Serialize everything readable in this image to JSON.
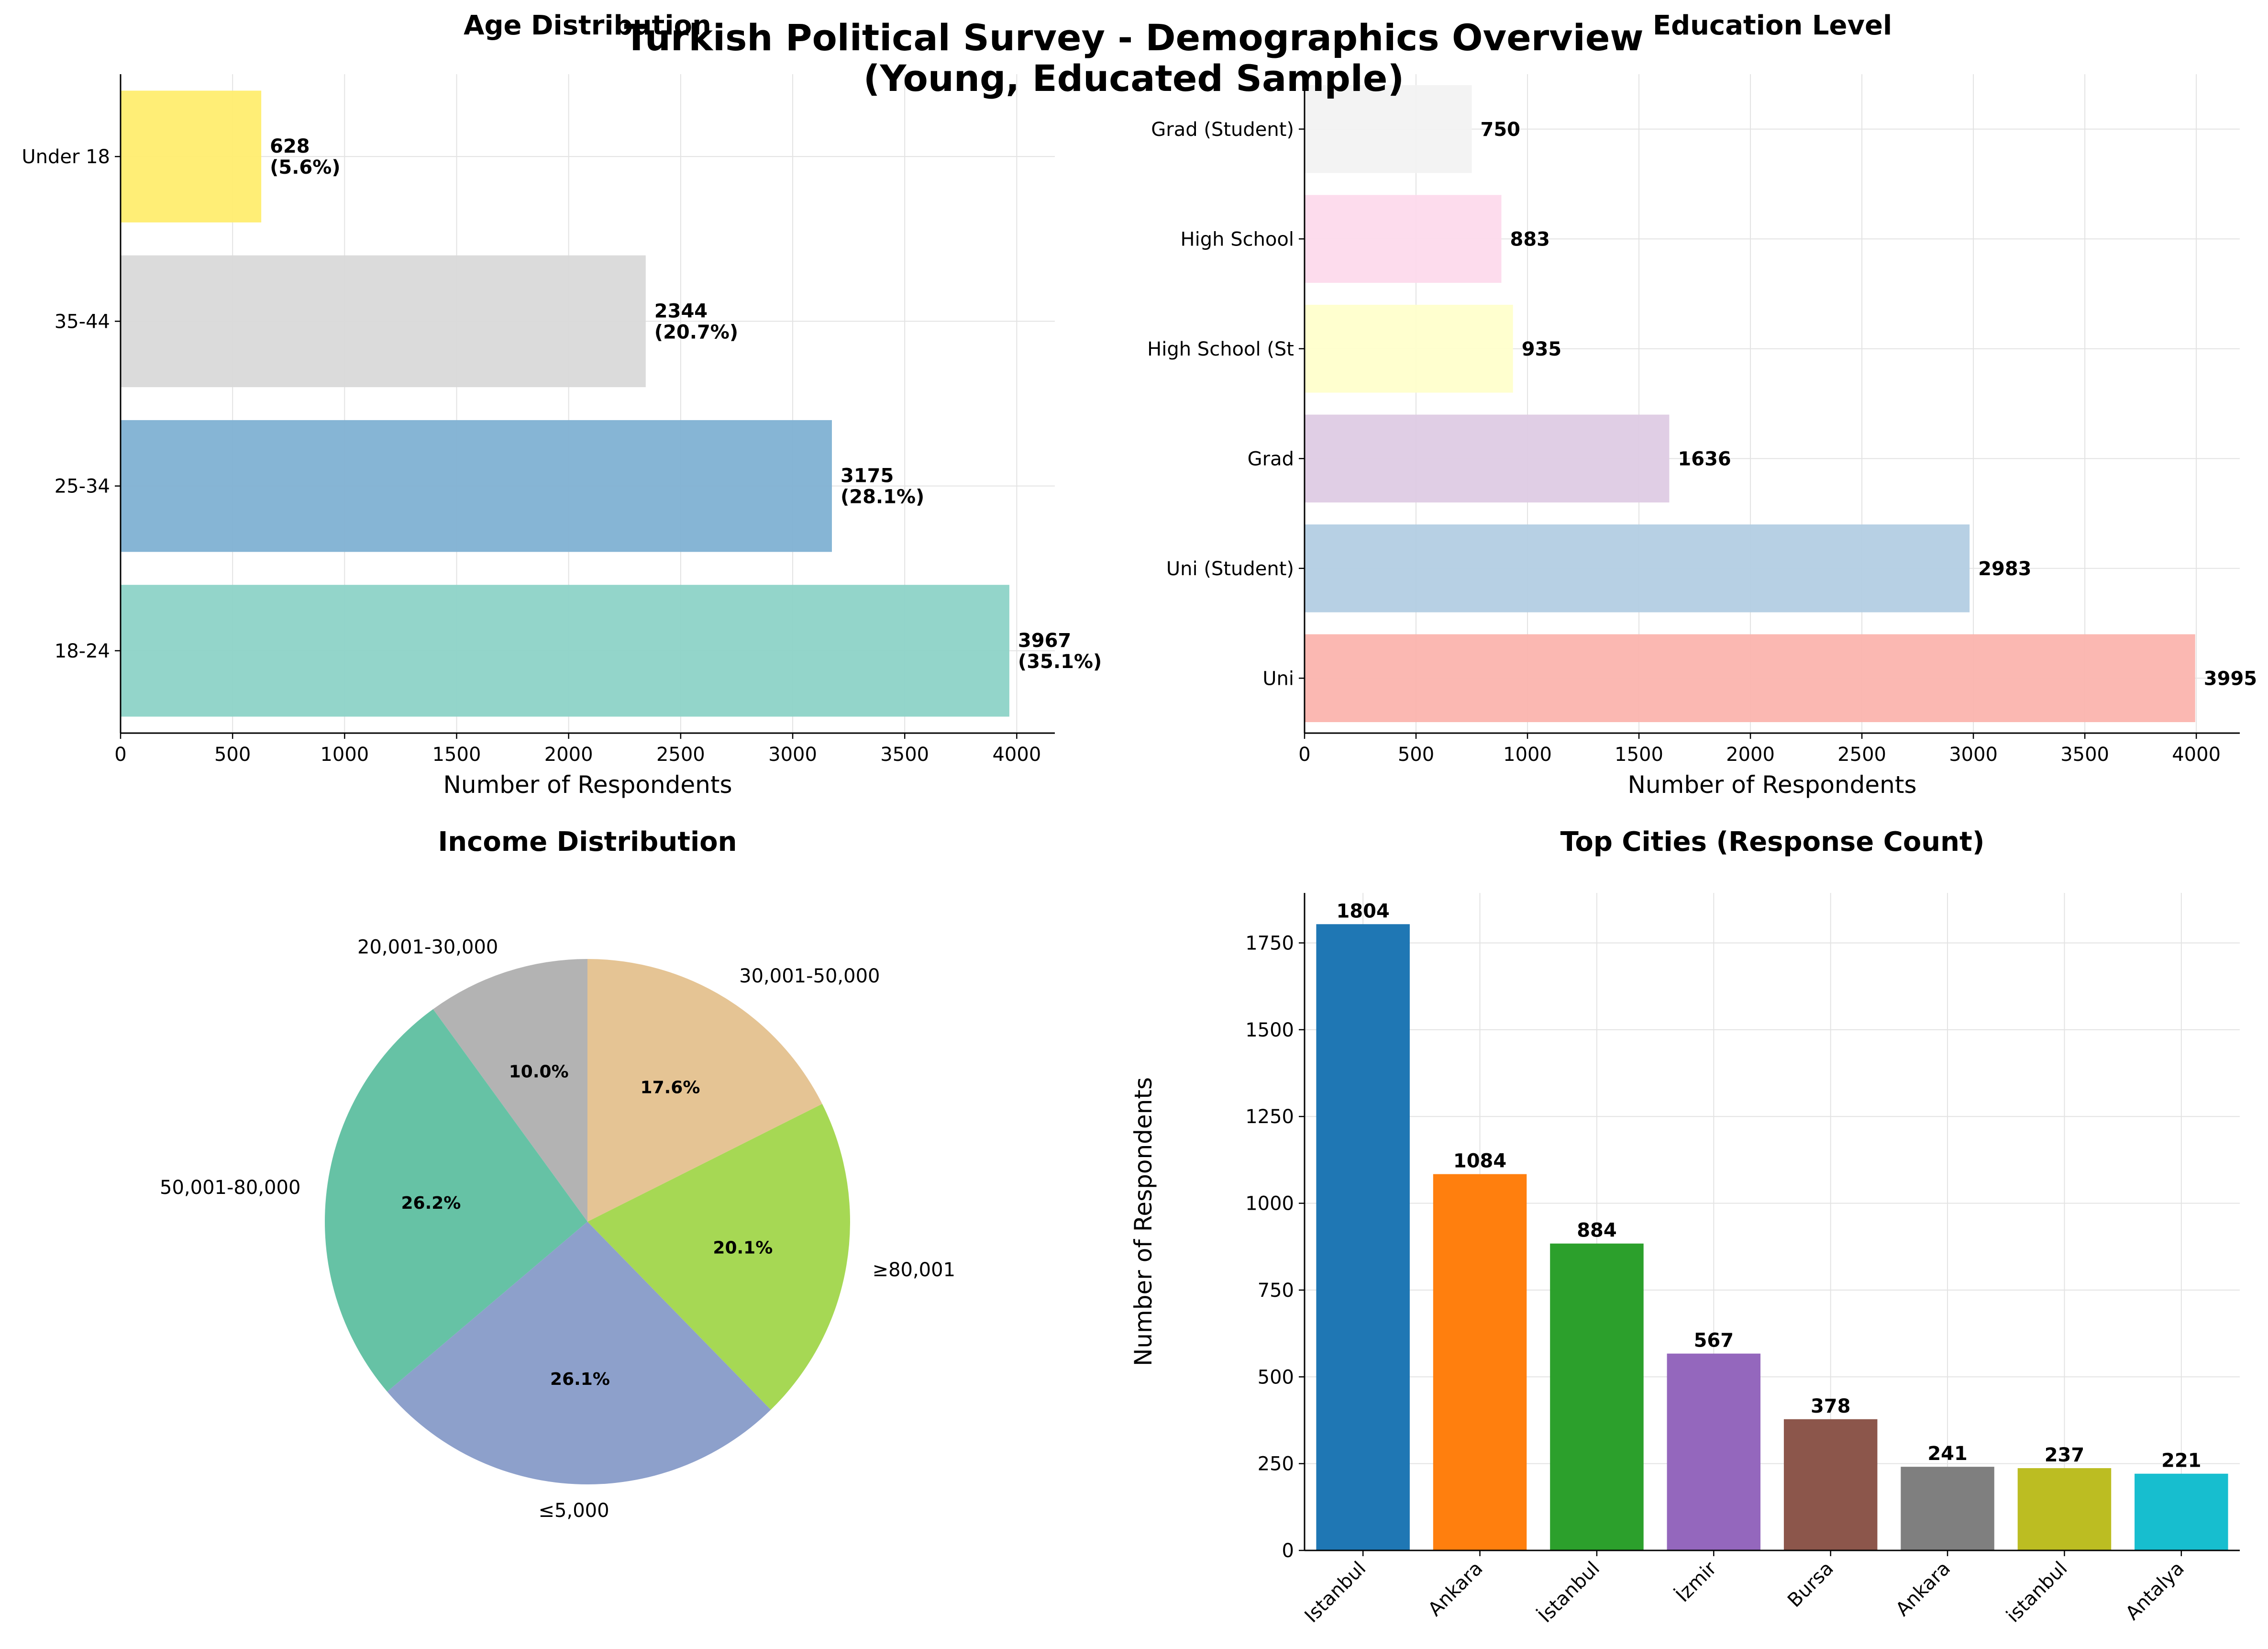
{
  "figure": {
    "title_line1": "Turkish Political Survey - Demographics Overview",
    "title_line2": "(Young, Educated Sample)"
  },
  "chart_data": [
    {
      "id": "age",
      "type": "bar",
      "orientation": "horizontal",
      "title": "Age Distribution",
      "xlabel": "Number of Respondents",
      "ylabel": "",
      "categories": [
        "18-24",
        "25-34",
        "35-44",
        "Under 18"
      ],
      "values": [
        3967,
        3175,
        2344,
        628
      ],
      "data_labels": [
        "3967\n(35.1%)",
        "3175\n(28.1%)",
        "2344\n(20.7%)",
        "628\n(5.6%)"
      ],
      "colors": [
        "#8dd3c7",
        "#80b1d3",
        "#d9d9d9",
        "#ffed6f"
      ],
      "xlim": [
        0,
        4170
      ],
      "xticks": [
        0,
        500,
        1000,
        1500,
        2000,
        2500,
        3000,
        3500,
        4000
      ],
      "grid": true
    },
    {
      "id": "edu",
      "type": "bar",
      "orientation": "horizontal",
      "title": "Education Level",
      "xlabel": "Number of Respondents",
      "ylabel": "",
      "categories": [
        "Uni",
        "Uni (Student)",
        "Grad",
        "High School (St",
        "High School",
        "Grad (Student)"
      ],
      "values": [
        3995,
        2983,
        1636,
        935,
        883,
        750
      ],
      "data_labels": [
        "3995",
        "2983",
        "1636",
        "935",
        "883",
        "750"
      ],
      "colors": [
        "#fbb4ae",
        "#b3cde3",
        "#decbe4",
        "#ffffcc",
        "#fddaec",
        "#f2f2f2"
      ],
      "xlim": [
        0,
        4195
      ],
      "xticks": [
        0,
        500,
        1000,
        1500,
        2000,
        2500,
        3000,
        3500,
        4000
      ],
      "grid": true
    },
    {
      "id": "income",
      "type": "pie",
      "title": "Income Distribution",
      "categories": [
        "20,001-30,000",
        "50,001-80,000",
        "≤5,000",
        "≥80,001",
        "30,001-50,000"
      ],
      "values": [
        10.0,
        26.2,
        26.1,
        20.1,
        17.6
      ],
      "pct_labels": [
        "10.0%",
        "26.2%",
        "26.1%",
        "20.1%",
        "17.6%"
      ],
      "colors": [
        "#b3b3b3",
        "#66c2a5",
        "#8da0cb",
        "#a6d854",
        "#e5c494"
      ],
      "start_angle_deg": 90,
      "direction": "counterclockwise"
    },
    {
      "id": "cities",
      "type": "bar",
      "orientation": "vertical",
      "title": "Top Cities (Response Count)",
      "xlabel": "",
      "ylabel": "Number of Respondents",
      "categories": [
        "Istanbul",
        "Ankara",
        "İstanbul",
        "İzmir",
        "Bursa",
        "Ankara",
        "istanbul",
        "Antalya"
      ],
      "values": [
        1804,
        1084,
        884,
        567,
        378,
        241,
        237,
        221
      ],
      "data_labels": [
        "1804",
        "1084",
        "884",
        "567",
        "378",
        "241",
        "237",
        "221"
      ],
      "colors": [
        "#1f77b4",
        "#ff7f0e",
        "#2ca02c",
        "#9467bd",
        "#8c564b",
        "#7f7f7f",
        "#bcbd22",
        "#17becf"
      ],
      "ylim": [
        0,
        1894
      ],
      "yticks": [
        0,
        250,
        500,
        750,
        1000,
        1250,
        1500,
        1750
      ],
      "grid": true
    }
  ]
}
